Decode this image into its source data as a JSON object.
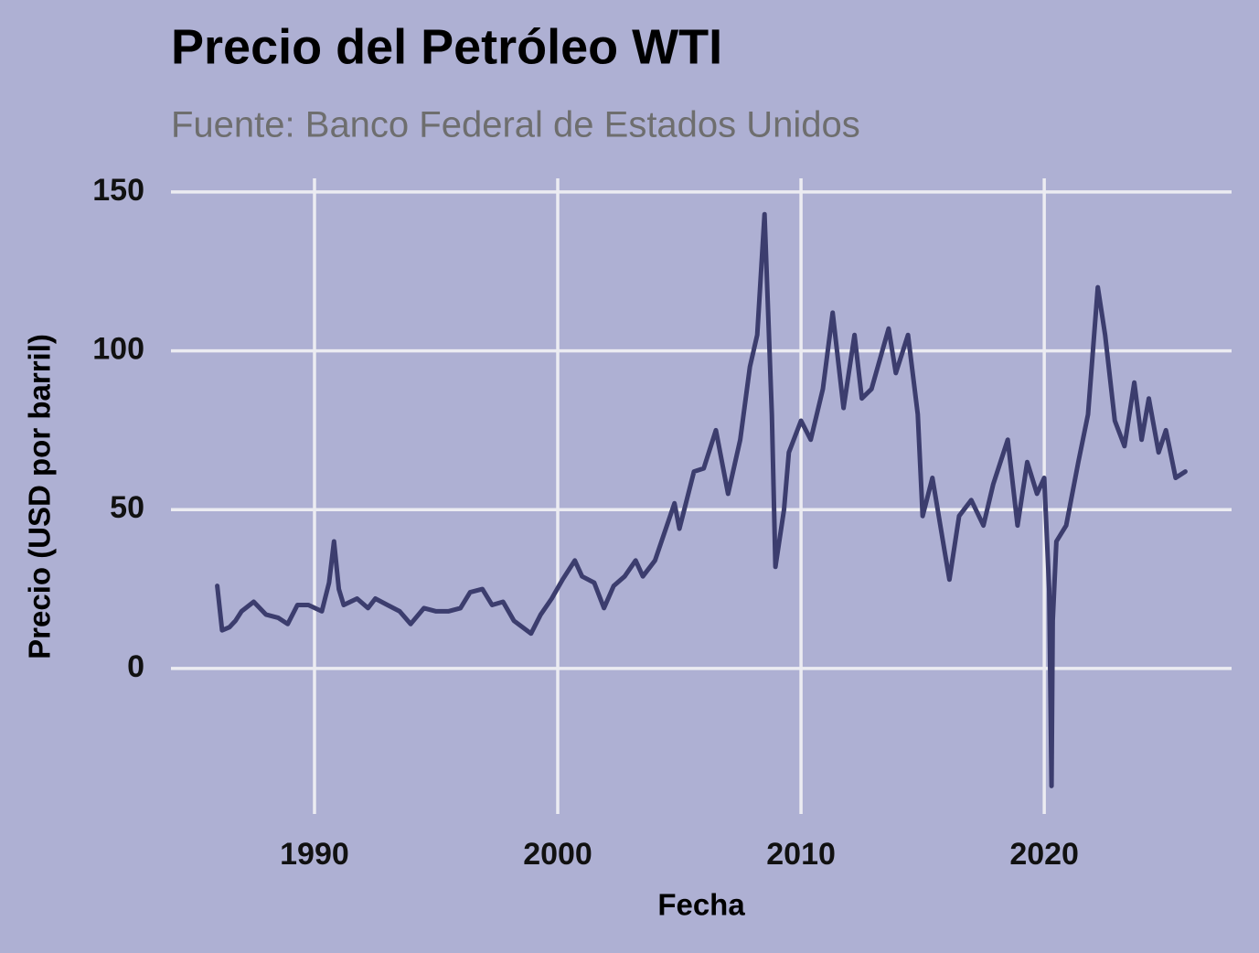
{
  "chart_data": {
    "type": "line",
    "title": "Precio del Petróleo WTI",
    "subtitle": "Fuente: Banco Federal de Estados Unidos",
    "x_label": "Fecha",
    "y_label": "Precio (USD por barril)",
    "x": [
      1986.0,
      1986.2,
      1986.5,
      1986.75,
      1987.0,
      1987.5,
      1988.0,
      1988.5,
      1988.9,
      1989.3,
      1989.75,
      1990.3,
      1990.6,
      1990.8,
      1991.0,
      1991.2,
      1991.75,
      1992.2,
      1992.5,
      1993.0,
      1993.5,
      1993.95,
      1994.5,
      1995.0,
      1995.5,
      1996.0,
      1996.4,
      1996.9,
      1997.3,
      1997.75,
      1998.2,
      1998.9,
      1999.3,
      1999.75,
      2000.2,
      2000.7,
      2001.0,
      2001.5,
      2001.9,
      2002.3,
      2002.75,
      2003.2,
      2003.5,
      2004.0,
      2004.8,
      2005.0,
      2005.6,
      2006.0,
      2006.5,
      2007.0,
      2007.5,
      2007.9,
      2008.2,
      2008.5,
      2008.8,
      2008.95,
      2009.3,
      2009.5,
      2010.0,
      2010.4,
      2010.9,
      2011.3,
      2011.75,
      2012.2,
      2012.5,
      2012.9,
      2013.6,
      2013.9,
      2014.4,
      2014.8,
      2015.0,
      2015.4,
      2015.9,
      2016.1,
      2016.5,
      2017.0,
      2017.5,
      2017.9,
      2018.5,
      2018.9,
      2019.3,
      2019.7,
      2020.0,
      2020.2,
      2020.3,
      2020.35,
      2020.5,
      2020.9,
      2021.4,
      2021.8,
      2022.2,
      2022.5,
      2022.9,
      2023.3,
      2023.7,
      2024.0,
      2024.3,
      2024.7,
      2025.0,
      2025.4,
      2025.8
    ],
    "values": [
      26,
      12,
      13,
      15,
      18,
      21,
      17,
      16,
      14,
      20,
      20,
      18,
      27,
      40,
      25,
      20,
      22,
      19,
      22,
      20,
      18,
      14,
      19,
      18,
      18,
      19,
      24,
      25,
      20,
      21,
      15,
      11,
      17,
      22,
      28,
      34,
      29,
      27,
      19,
      26,
      29,
      34,
      29,
      34,
      52,
      44,
      62,
      63,
      75,
      55,
      72,
      95,
      105,
      143,
      80,
      32,
      50,
      68,
      78,
      72,
      88,
      112,
      82,
      105,
      85,
      88,
      107,
      93,
      105,
      80,
      48,
      60,
      37,
      28,
      48,
      53,
      45,
      58,
      72,
      45,
      65,
      55,
      60,
      25,
      -37,
      15,
      40,
      45,
      65,
      80,
      120,
      105,
      78,
      70,
      90,
      72,
      85,
      68,
      75,
      60,
      62
    ],
    "color": "#3c3d6e",
    "xlim": [
      1984.1,
      2027.7
    ],
    "ylim": [
      -45.8,
      154.3
    ],
    "xticks": [
      1990,
      2000,
      2010,
      2020
    ],
    "yticks": [
      0,
      50,
      100,
      150
    ],
    "grid": true
  }
}
